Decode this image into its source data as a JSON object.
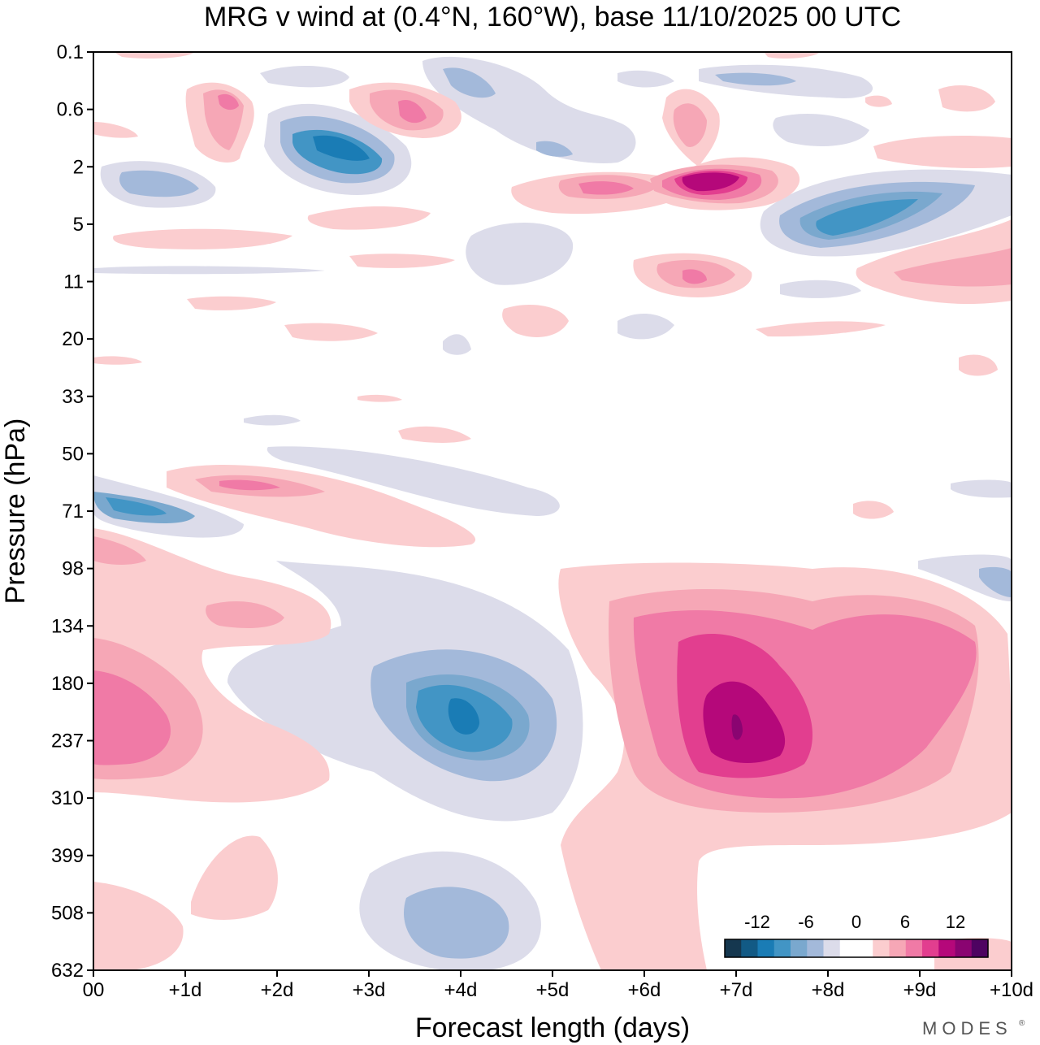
{
  "chart_data": {
    "type": "contour",
    "title": "MRG v wind at (0.4°N, 160°W),  base 11/10/2025  00 UTC",
    "xlabel": "Forecast length (days)",
    "ylabel": "Pressure (hPa)",
    "x_range_days": [
      0,
      10
    ],
    "x_tick_labels": [
      "00",
      "+1d",
      "+2d",
      "+3d",
      "+4d",
      "+5d",
      "+6d",
      "+7d",
      "+8d",
      "+9d",
      "+10d"
    ],
    "y_tick_labels": [
      "0.1",
      "0.6",
      "2",
      "5",
      "11",
      "20",
      "33",
      "50",
      "71",
      "98",
      "134",
      "180",
      "237",
      "310",
      "399",
      "508",
      "632"
    ],
    "colorbar": {
      "tick_labels": [
        "-12",
        "-6",
        "0",
        "6",
        "12"
      ],
      "colors": [
        "#15374f",
        "#125a85",
        "#1a7cb5",
        "#4295c5",
        "#7aa8ce",
        "#a3b9da",
        "#dcdcea",
        "#ffffff",
        "#ffffff",
        "#fbcdcf",
        "#f6a7b6",
        "#f07aa6",
        "#e23e8f",
        "#b5087a",
        "#8a0471",
        "#4e0361"
      ]
    },
    "features": [
      {
        "label": "positive max",
        "day": 7.0,
        "level": "237",
        "value": 14
      },
      {
        "label": "negative min",
        "day": 4.0,
        "level": "180-237",
        "value": -12
      },
      {
        "label": "positive max",
        "day": 0.5,
        "level": "180-237",
        "value": 8
      },
      {
        "label": "negative min",
        "day": 8.5,
        "level": "5",
        "value": -9
      },
      {
        "label": "positive max",
        "day": 6.5,
        "level": "2",
        "value": 12
      },
      {
        "label": "negative min",
        "day": 2.7,
        "level": "0.6-2",
        "value": -10
      },
      {
        "label": "negative min",
        "day": 4.0,
        "level": "508",
        "value": -5
      },
      {
        "label": "negative min",
        "day": 0.5,
        "level": "71",
        "value": -8
      },
      {
        "label": "positive max",
        "day": 1.8,
        "level": "50-71",
        "value": 7
      }
    ]
  },
  "brand": {
    "text": "MODES",
    "mark": "®"
  }
}
